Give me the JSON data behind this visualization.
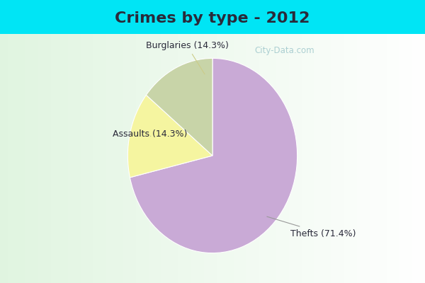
{
  "title": "Crimes by type - 2012",
  "slices": [
    {
      "label": "Thefts (71.4%)",
      "value": 71.4,
      "color": "#c9aad6"
    },
    {
      "label": "Burglaries (14.3%)",
      "value": 14.3,
      "color": "#f5f5a0"
    },
    {
      "label": "Assaults (14.3%)",
      "value": 14.3,
      "color": "#c8d4a8"
    }
  ],
  "background_top": "#00e5f5",
  "background_inner": "#e8f5ee",
  "title_fontsize": 16,
  "title_color": "#2a2a3a",
  "label_fontsize": 9,
  "label_color": "#2a2a3a",
  "watermark": "City-Data.com",
  "watermark_color": "#a0c8cc",
  "startangle": 90,
  "top_bar_height": 0.12
}
